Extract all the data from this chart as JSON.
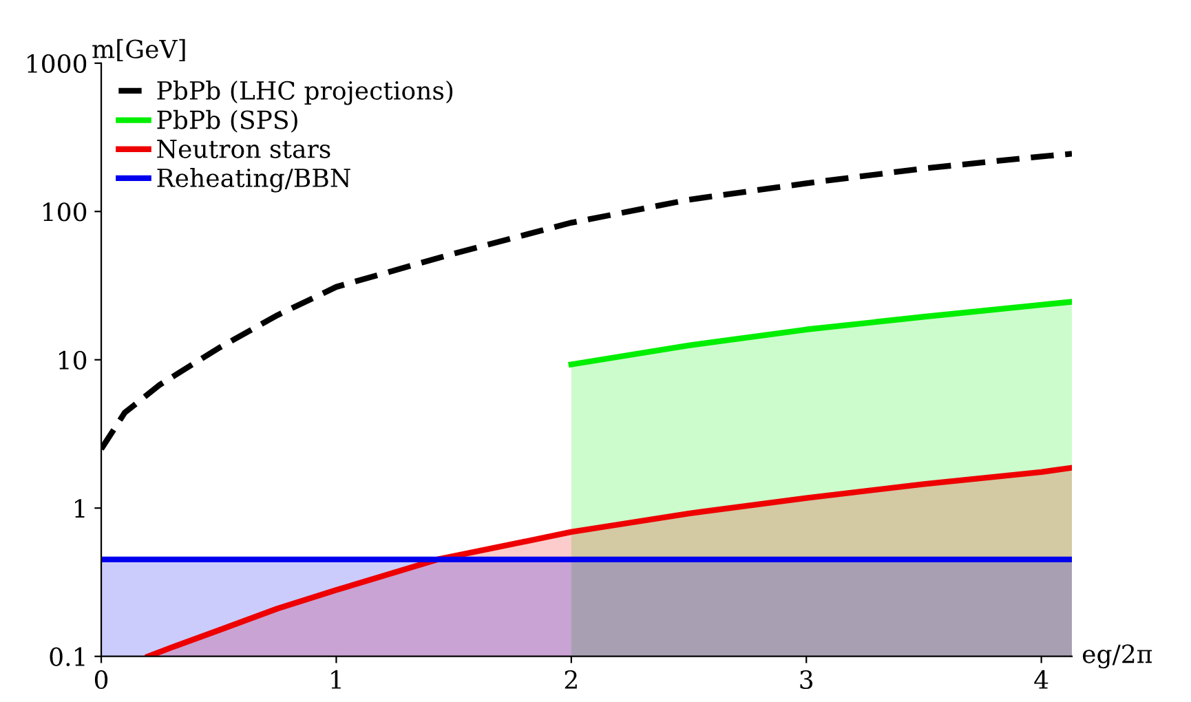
{
  "chart_data": {
    "type": "line",
    "xlabel": "eg/2π",
    "ylabel": "m[GeV]",
    "log": "y",
    "xlim": [
      0,
      4.13
    ],
    "ylim": [
      0.1,
      1000
    ],
    "xticks": [
      0,
      1,
      2,
      3,
      4
    ],
    "yticks": [
      0.1,
      1,
      10,
      100,
      1000
    ],
    "grid": false,
    "legend": "top left",
    "series": [
      {
        "name": "PbPb (LHC projections)",
        "line_style": "dashed",
        "color": "#000000",
        "x": [
          0,
          0.1,
          0.25,
          0.5,
          0.75,
          1,
          1.5,
          2,
          2.5,
          3,
          3.5,
          4,
          4.13
        ],
        "values": [
          2.5,
          4.4,
          6.8,
          12,
          20,
          31,
          52,
          84,
          120,
          155,
          195,
          235,
          245
        ]
      },
      {
        "name": "PbPb (SPS)",
        "type": "area",
        "line_style": "solid",
        "color": "#00ee00",
        "x": [
          2,
          2.5,
          3,
          3.5,
          4,
          4.13
        ],
        "values": [
          9.3,
          12.5,
          16,
          19.5,
          23.5,
          24.6
        ]
      },
      {
        "name": "Neutron stars",
        "type": "area",
        "line_style": "solid",
        "color": "#ee0000",
        "x": [
          0.2,
          0.3,
          0.5,
          0.75,
          1,
          1.43,
          2,
          2.5,
          3,
          3.5,
          4,
          4.13
        ],
        "values": [
          0.1,
          0.115,
          0.15,
          0.21,
          0.28,
          0.45,
          0.69,
          0.92,
          1.17,
          1.45,
          1.75,
          1.87
        ]
      },
      {
        "name": "Reheating/BBN",
        "type": "area",
        "line_style": "solid",
        "color": "#0000ee",
        "x": [
          0,
          4.13
        ],
        "values": [
          0.45,
          0.45
        ]
      }
    ]
  }
}
